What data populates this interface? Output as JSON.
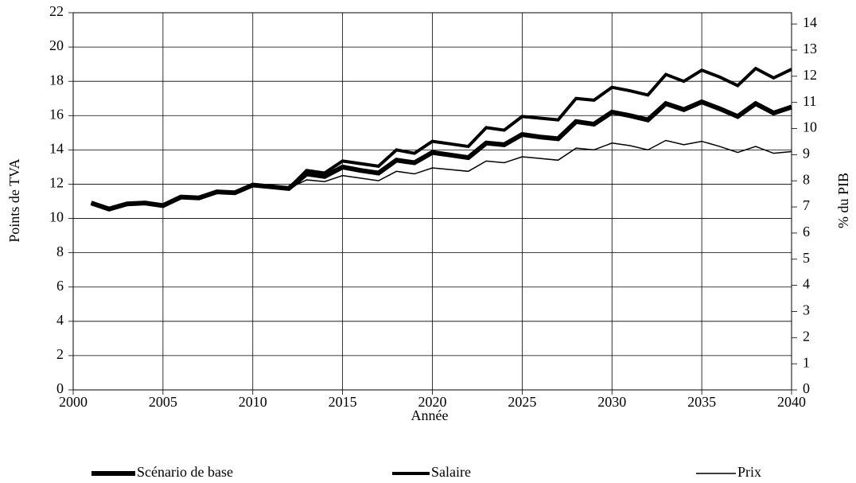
{
  "chart_data": {
    "type": "line",
    "x_label": "Année",
    "y_label": "Points de TVA",
    "y2_label": "% du PIB",
    "x": [
      2001,
      2002,
      2003,
      2004,
      2005,
      2006,
      2007,
      2008,
      2009,
      2010,
      2011,
      2012,
      2013,
      2014,
      2015,
      2016,
      2017,
      2018,
      2019,
      2020,
      2021,
      2022,
      2023,
      2024,
      2025,
      2026,
      2027,
      2028,
      2029,
      2030,
      2031,
      2032,
      2033,
      2034,
      2035,
      2036,
      2037,
      2038,
      2039,
      2040
    ],
    "series": [
      {
        "name": "Scénario de base",
        "color": "#000000",
        "values": [
          10.9,
          10.55,
          10.85,
          10.9,
          10.75,
          11.25,
          11.2,
          11.55,
          11.5,
          11.95,
          11.85,
          11.75,
          12.6,
          12.45,
          13.0,
          12.8,
          12.65,
          13.4,
          13.25,
          13.85,
          13.7,
          13.55,
          14.4,
          14.3,
          14.9,
          14.75,
          14.65,
          15.65,
          15.5,
          16.2,
          16.0,
          15.75,
          16.7,
          16.35,
          16.8,
          16.4,
          15.95,
          16.7,
          16.15,
          16.5
        ]
      },
      {
        "name": "Salaire",
        "color": "#000000",
        "values": [
          10.9,
          10.55,
          10.85,
          10.9,
          10.75,
          11.25,
          11.2,
          11.55,
          11.5,
          11.95,
          11.85,
          11.75,
          12.8,
          12.65,
          13.35,
          13.2,
          13.05,
          14.0,
          13.8,
          14.5,
          14.35,
          14.2,
          15.3,
          15.15,
          15.95,
          15.85,
          15.75,
          17.0,
          16.9,
          17.65,
          17.45,
          17.2,
          18.4,
          18.0,
          18.65,
          18.25,
          17.75,
          18.75,
          18.2,
          18.7
        ]
      },
      {
        "name": "Prix",
        "color": "#000000",
        "values": [
          10.9,
          10.55,
          10.85,
          10.9,
          10.75,
          11.25,
          11.2,
          11.55,
          11.5,
          11.95,
          11.85,
          11.75,
          12.25,
          12.15,
          12.5,
          12.35,
          12.2,
          12.75,
          12.6,
          12.95,
          12.85,
          12.75,
          13.35,
          13.25,
          13.6,
          13.5,
          13.4,
          14.1,
          14.0,
          14.4,
          14.25,
          14.0,
          14.55,
          14.3,
          14.5,
          14.2,
          13.85,
          14.2,
          13.8,
          13.9
        ]
      }
    ],
    "xlim": [
      2000,
      2040
    ],
    "xticks": [
      2000,
      2005,
      2010,
      2015,
      2020,
      2025,
      2030,
      2035,
      2040
    ],
    "ylim": [
      0,
      22
    ],
    "yticks": [
      0,
      2,
      4,
      6,
      8,
      10,
      12,
      14,
      16,
      18,
      20,
      22
    ],
    "y2lim": [
      0,
      14.43
    ],
    "y2ticks": [
      0,
      1,
      2,
      3,
      4,
      5,
      6,
      7,
      8,
      9,
      10,
      11,
      12,
      13,
      14
    ],
    "grid": true,
    "legend": "bottom"
  }
}
